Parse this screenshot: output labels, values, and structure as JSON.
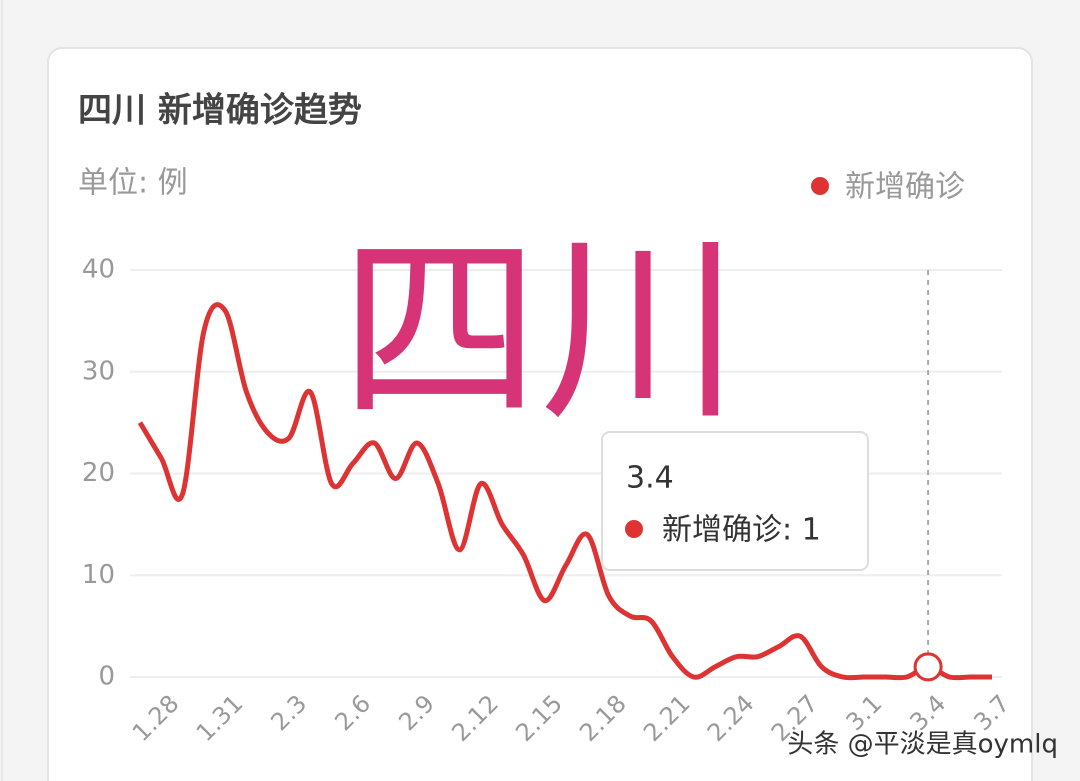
{
  "chart_data": {
    "type": "line",
    "title": "四川 新增确诊趋势",
    "subtitle": "单位: 例",
    "watermark": "四川",
    "categories": [
      null,
      "1.28",
      null,
      null,
      "1.31",
      null,
      null,
      "2.3",
      null,
      null,
      "2.6",
      null,
      null,
      "2.9",
      null,
      null,
      "2.12",
      null,
      null,
      "2.15",
      null,
      null,
      "2.18",
      null,
      null,
      "2.21",
      null,
      null,
      "2.24",
      null,
      null,
      "2.27",
      null,
      null,
      "3.1",
      null,
      null,
      "3.4",
      null,
      null,
      "3.7"
    ],
    "series": [
      {
        "name": "新增确诊",
        "color": "#dd3333",
        "values": [
          25,
          21.5,
          18,
          34,
          36,
          28,
          24,
          23.5,
          28,
          19,
          21,
          23,
          19.5,
          23,
          19,
          12.5,
          19,
          15,
          12,
          7.5,
          11,
          14,
          8,
          6,
          5.5,
          2,
          0,
          1,
          2,
          2,
          3,
          4,
          1,
          0,
          0,
          0,
          0,
          1,
          0,
          0,
          0
        ]
      }
    ],
    "ylim": [
      0,
      40
    ],
    "yticks": [
      0,
      10,
      20,
      30,
      40
    ],
    "grid": true,
    "legend": "top-right",
    "tooltip": {
      "index": 37,
      "label": "新增确诊: 1"
    },
    "footer": "头条 @平淡是真oymlq"
  }
}
